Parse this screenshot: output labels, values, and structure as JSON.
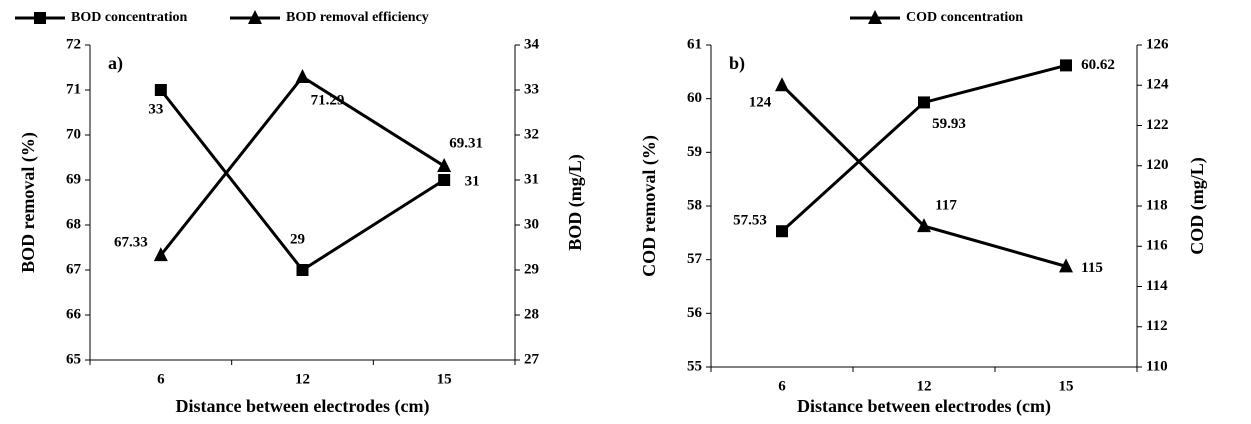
{
  "chart_data": [
    {
      "type": "line",
      "panel_label": "a)",
      "xlabel": "Distance between electrodes (cm)",
      "ylabel": "BOD removal (%)",
      "y2label": "BOD (mg/L)",
      "categories": [
        "6",
        "12",
        "15"
      ],
      "ylim": [
        65,
        72
      ],
      "yticks": [
        65,
        66,
        67,
        68,
        69,
        70,
        71,
        72
      ],
      "y2lim": [
        27,
        34
      ],
      "y2ticks": [
        27,
        28,
        29,
        30,
        31,
        32,
        33,
        34
      ],
      "series": [
        {
          "name": "BOD concentration",
          "color": "#000000",
          "marker": "square",
          "axis": "y2",
          "values": [
            33,
            29,
            31
          ]
        },
        {
          "name": "BOD removal efficiency",
          "color": "#000000",
          "marker": "triangle",
          "values": [
            67.33,
            71.29,
            69.31
          ]
        }
      ]
    },
    {
      "type": "line",
      "panel_label": "b)",
      "xlabel": "Distance between electrodes (cm)",
      "ylabel": "COD removal (%)",
      "y2label": "COD (mg/L)",
      "categories": [
        "6",
        "12",
        "15"
      ],
      "ylim": [
        55,
        61
      ],
      "yticks": [
        55,
        56,
        57,
        58,
        59,
        60,
        61
      ],
      "y2lim": [
        110,
        126
      ],
      "y2ticks": [
        110,
        112,
        114,
        116,
        118,
        120,
        122,
        124,
        126
      ],
      "series": [
        {
          "color": "#000000",
          "marker": "square",
          "values": [
            57.53,
            59.93,
            60.62
          ]
        },
        {
          "name": "COD concentration",
          "color": "#000000",
          "marker": "triangle",
          "axis": "y2",
          "values": [
            124,
            117,
            115
          ]
        }
      ]
    }
  ]
}
